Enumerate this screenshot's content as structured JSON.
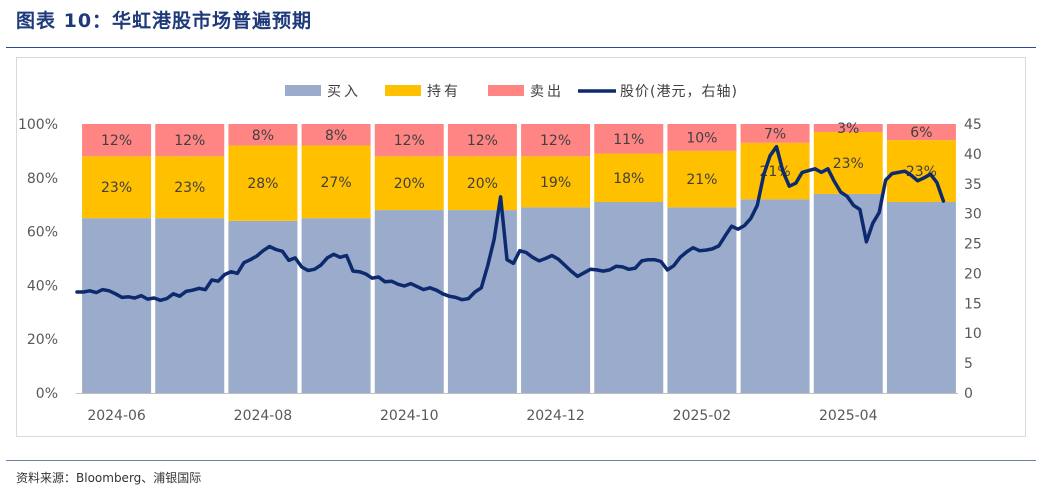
{
  "figure_title": "图表 10：华虹港股市场普遍预期",
  "source_note": "资料来源：Bloomberg、浦银国际",
  "chart_data": {
    "type": "bar",
    "stacked": true,
    "percent_stacked": true,
    "categories": [
      "2024-06",
      "2024-07",
      "2024-08",
      "2024-09",
      "2024-10",
      "2024-11",
      "2024-12",
      "2025-01",
      "2025-02",
      "2025-03",
      "2025-04",
      "2025-05"
    ],
    "x_tick_labels": [
      "2024-06",
      "2024-08",
      "2024-10",
      "2024-12",
      "2025-02",
      "2025-04"
    ],
    "series": [
      {
        "name": "买入",
        "color": "#9aabcb",
        "values": [
          65,
          65,
          64,
          65,
          68,
          68,
          69,
          71,
          69,
          72,
          74,
          71
        ]
      },
      {
        "name": "持有",
        "color": "#ffc000",
        "values": [
          23,
          23,
          28,
          27,
          20,
          20,
          19,
          18,
          21,
          21,
          23,
          23
        ]
      },
      {
        "name": "卖出",
        "color": "#ff8585",
        "values": [
          12,
          12,
          8,
          8,
          12,
          12,
          12,
          11,
          10,
          7,
          3,
          6
        ]
      }
    ],
    "label_series": [
      "持有",
      "卖出"
    ],
    "label_suffix": "%",
    "line_series": {
      "name": "股价(港元，右轴)",
      "color": "#0d2a6e",
      "axis": "right",
      "values": [
        16.9,
        16.9,
        17.1,
        16.8,
        17.3,
        17.1,
        16.6,
        16.0,
        16.1,
        15.9,
        16.3,
        15.7,
        15.9,
        15.5,
        15.8,
        16.6,
        16.2,
        17.0,
        17.2,
        17.5,
        17.3,
        18.9,
        18.7,
        19.8,
        20.3,
        20.0,
        21.8,
        22.3,
        22.9,
        23.8,
        24.5,
        24.0,
        23.7,
        22.2,
        22.6,
        21.1,
        20.5,
        20.7,
        21.4,
        22.6,
        23.2,
        22.7,
        23.0,
        20.4,
        20.3,
        19.9,
        19.2,
        19.4,
        18.6,
        18.7,
        18.2,
        17.9,
        18.3,
        17.8,
        17.3,
        17.6,
        17.2,
        16.6,
        16.2,
        16.0,
        15.6,
        15.8,
        16.9,
        17.6,
        21.3,
        25.7,
        32.8,
        22.3,
        21.7,
        23.8,
        23.5,
        22.7,
        22.1,
        22.5,
        23.0,
        22.4,
        21.4,
        20.4,
        19.5,
        20.1,
        20.7,
        20.6,
        20.4,
        20.6,
        21.2,
        21.1,
        20.7,
        20.9,
        22.1,
        22.3,
        22.3,
        22.0,
        20.6,
        21.3,
        22.7,
        23.6,
        24.3,
        23.8,
        23.9,
        24.1,
        24.6,
        26.3,
        27.9,
        27.4,
        28.0,
        29.2,
        31.4,
        36.5,
        39.7,
        41.2,
        37.1,
        34.6,
        35.1,
        36.9,
        37.2,
        37.5,
        36.9,
        37.5,
        35.4,
        33.6,
        32.9,
        31.4,
        30.7,
        25.3,
        28.4,
        30.2,
        35.6,
        36.7,
        36.9,
        37.1,
        36.4,
        35.5,
        36.0,
        36.6,
        35.2,
        32.1
      ]
    },
    "left_axis": {
      "min": 0,
      "max": 100,
      "ticks": [
        0,
        20,
        40,
        60,
        80,
        100
      ],
      "suffix": "%"
    },
    "right_axis": {
      "min": 0,
      "max": 45,
      "ticks": [
        0,
        5,
        10,
        15,
        20,
        25,
        30,
        35,
        40,
        45
      ]
    },
    "legend": {
      "position": "top",
      "entries": [
        "买入",
        "持有",
        "卖出",
        "股价(港元，右轴)"
      ]
    }
  }
}
